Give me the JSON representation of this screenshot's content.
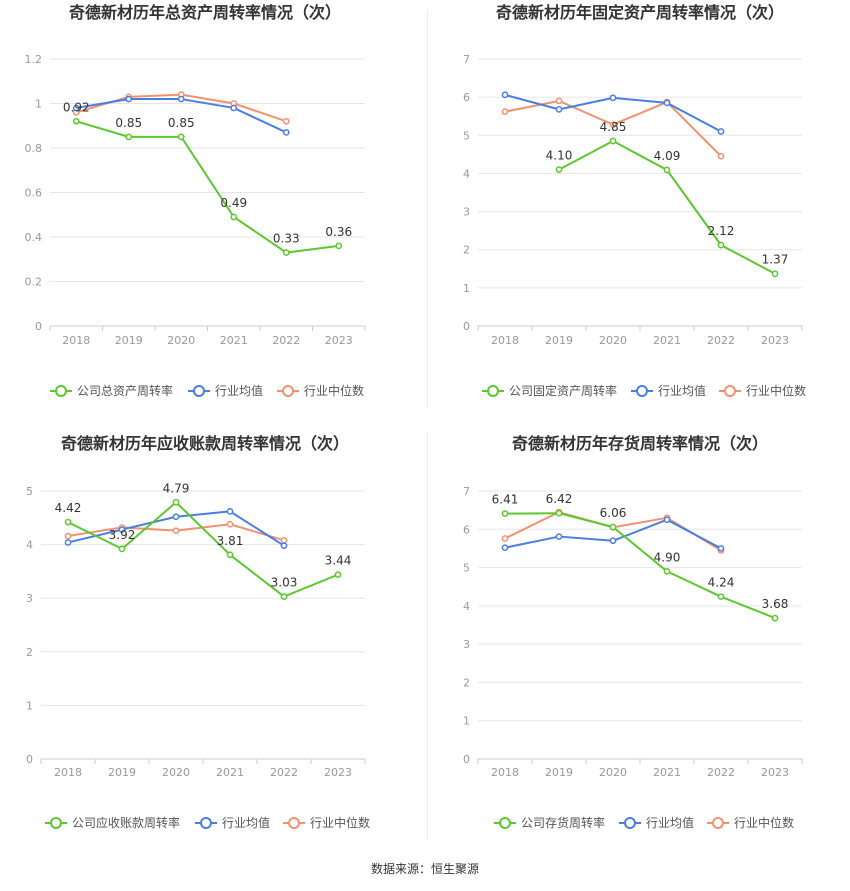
{
  "source": "数据来源：恒生聚源",
  "colors": {
    "company": "#5cc72e",
    "avg": "#4a7ee0",
    "median": "#f29170",
    "grid": "#e6e6e6",
    "axis": "#999999"
  },
  "charts": [
    {
      "title": "奇德新材历年总资产周转率情况（次）",
      "legend": [
        "公司总资产周转率",
        "行业均值",
        "行业中位数"
      ]
    },
    {
      "title": "奇德新材历年固定资产周转率情况（次）",
      "legend": [
        "公司固定资产周转率",
        "行业均值",
        "行业中位数"
      ]
    },
    {
      "title": "奇德新材历年应收账款周转率情况（次）",
      "legend": [
        "公司应收账款周转率",
        "行业均值",
        "行业中位数"
      ]
    },
    {
      "title": "奇德新材历年存货周转率情况（次）",
      "legend": [
        "公司存货周转率",
        "行业均值",
        "行业中位数"
      ]
    }
  ],
  "chart_data": [
    {
      "type": "line",
      "title": "奇德新材历年总资产周转率情况（次）",
      "categories": [
        "2018",
        "2019",
        "2020",
        "2021",
        "2022",
        "2023"
      ],
      "yticks": [
        "0",
        "0.2",
        "0.4",
        "0.6",
        "0.8",
        "1",
        "1.2"
      ],
      "ylim": [
        0,
        1.2
      ],
      "grid": true,
      "legend_position": "bottom",
      "series": [
        {
          "name": "公司总资产周转率",
          "values": [
            0.92,
            0.85,
            0.85,
            0.49,
            0.33,
            0.36
          ],
          "labels": [
            "0.92",
            "0.85",
            "0.85",
            "0.49",
            "0.33",
            "0.36"
          ]
        },
        {
          "name": "行业均值",
          "values": [
            0.98,
            1.02,
            1.02,
            0.98,
            0.87,
            null
          ]
        },
        {
          "name": "行业中位数",
          "values": [
            0.96,
            1.03,
            1.04,
            1.0,
            0.92,
            null
          ]
        }
      ]
    },
    {
      "type": "line",
      "title": "奇德新材历年固定资产周转率情况（次）",
      "categories": [
        "2018",
        "2019",
        "2020",
        "2021",
        "2022",
        "2023"
      ],
      "yticks": [
        "0",
        "1",
        "2",
        "3",
        "4",
        "5",
        "6",
        "7"
      ],
      "ylim": [
        0,
        7
      ],
      "grid": true,
      "legend_position": "bottom",
      "series": [
        {
          "name": "公司固定资产周转率",
          "values": [
            null,
            4.1,
            4.85,
            4.09,
            2.12,
            1.37
          ],
          "labels": [
            "",
            "4.10",
            "4.85",
            "4.09",
            "2.12",
            "1.37"
          ]
        },
        {
          "name": "行业均值",
          "values": [
            6.06,
            5.68,
            5.98,
            5.85,
            5.1,
            null
          ]
        },
        {
          "name": "行业中位数",
          "values": [
            5.62,
            5.9,
            5.28,
            5.87,
            4.45,
            null
          ]
        }
      ]
    },
    {
      "type": "line",
      "title": "奇德新材历年应收账款周转率情况（次）",
      "categories": [
        "2018",
        "2019",
        "2020",
        "2021",
        "2022",
        "2023"
      ],
      "yticks": [
        "0",
        "1",
        "2",
        "3",
        "4",
        "5"
      ],
      "ylim": [
        0,
        5
      ],
      "grid": true,
      "legend_position": "bottom",
      "series": [
        {
          "name": "公司应收账款周转率",
          "values": [
            4.42,
            3.92,
            4.79,
            3.81,
            3.03,
            3.44
          ],
          "labels": [
            "4.42",
            "3.92",
            "4.79",
            "3.81",
            "3.03",
            "3.44"
          ]
        },
        {
          "name": "行业均值",
          "values": [
            4.04,
            4.28,
            4.52,
            4.62,
            3.98,
            null
          ]
        },
        {
          "name": "行业中位数",
          "values": [
            4.16,
            4.32,
            4.26,
            4.38,
            4.08,
            null
          ]
        }
      ]
    },
    {
      "type": "line",
      "title": "奇德新材历年存货周转率情况（次）",
      "categories": [
        "2018",
        "2019",
        "2020",
        "2021",
        "2022",
        "2023"
      ],
      "yticks": [
        "0",
        "1",
        "2",
        "3",
        "4",
        "5",
        "6",
        "7"
      ],
      "ylim": [
        0,
        7
      ],
      "grid": true,
      "legend_position": "bottom",
      "series": [
        {
          "name": "公司存货周转率",
          "values": [
            6.41,
            6.42,
            6.06,
            4.9,
            4.24,
            3.68
          ],
          "labels": [
            "6.41",
            "6.42",
            "6.06",
            "4.90",
            "4.24",
            "3.68"
          ]
        },
        {
          "name": "行业均值",
          "values": [
            5.52,
            5.81,
            5.7,
            6.25,
            5.5,
            null
          ]
        },
        {
          "name": "行业中位数",
          "values": [
            5.76,
            6.45,
            6.05,
            6.3,
            5.45,
            null
          ]
        }
      ]
    }
  ]
}
